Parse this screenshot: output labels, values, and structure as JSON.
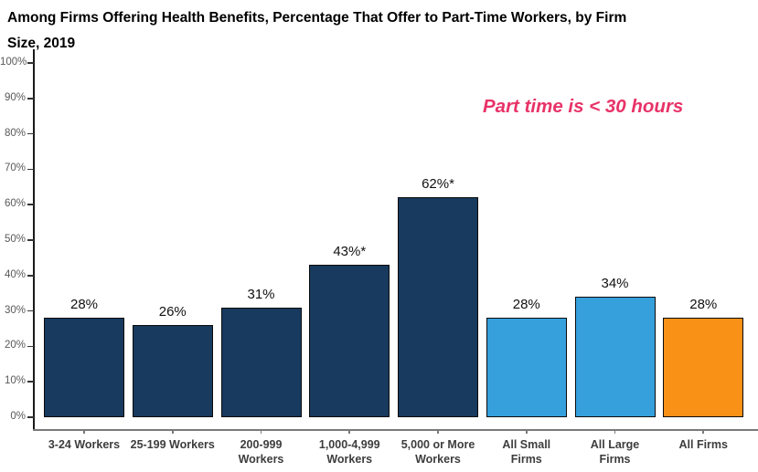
{
  "chart_data": {
    "type": "bar",
    "title": "Among Firms Offering Health Benefits, Percentage That Offer to Part-Time Workers, by Firm Size, 2019",
    "title_lines": [
      "Among Firms Offering Health Benefits, Percentage That Offer to Part-Time Workers, by Firm",
      "Size, 2019"
    ],
    "annotation": {
      "text": "Part time is < 30 hours",
      "color": "#E83368"
    },
    "categories": [
      "3-24 Workers",
      "25-199 Workers",
      "200-999 Workers",
      "1,000-4,999 Workers",
      "5,000 or More Workers",
      "All Small Firms",
      "All Large Firms",
      "All Firms"
    ],
    "category_lines": [
      [
        "3-24 Workers"
      ],
      [
        "25-199 Workers"
      ],
      [
        "200-999",
        "Workers"
      ],
      [
        "1,000-4,999",
        "Workers"
      ],
      [
        "5,000 or More",
        "Workers"
      ],
      [
        "All Small",
        "Firms"
      ],
      [
        "All Large",
        "Firms"
      ],
      [
        "All Firms"
      ]
    ],
    "values": [
      28,
      26,
      31,
      43,
      62,
      28,
      34,
      28
    ],
    "bar_labels": [
      "28%",
      "26%",
      "31%",
      "43%*",
      "62%*",
      "28%",
      "34%",
      "28%"
    ],
    "bar_colors": [
      "#173A5E",
      "#173A5E",
      "#173A5E",
      "#173A5E",
      "#173A5E",
      "#35A0DB",
      "#35A0DB",
      "#FA9117"
    ],
    "xlabel": "",
    "ylabel": "",
    "ylim": [
      0,
      100
    ],
    "ytick_labels": [
      "0%",
      "10%",
      "20%",
      "30%",
      "40%",
      "50%",
      "60%",
      "70%",
      "80%",
      "90%",
      "100%"
    ],
    "grid": false,
    "legend": "none"
  },
  "colors": {
    "background": "#ffffff",
    "title": "#000000",
    "annotation": "#E83368",
    "bar_navy": "#173A5E",
    "bar_blue": "#35A0DB",
    "bar_orange": "#FA9117",
    "bar_border": "#0b0b0b",
    "y_axis_line": "#1a1a1a",
    "x_axis_line": "#7a7a7a",
    "tick_label": "#595959",
    "category_label": "#3d3d3d",
    "value_label": "#111111"
  }
}
